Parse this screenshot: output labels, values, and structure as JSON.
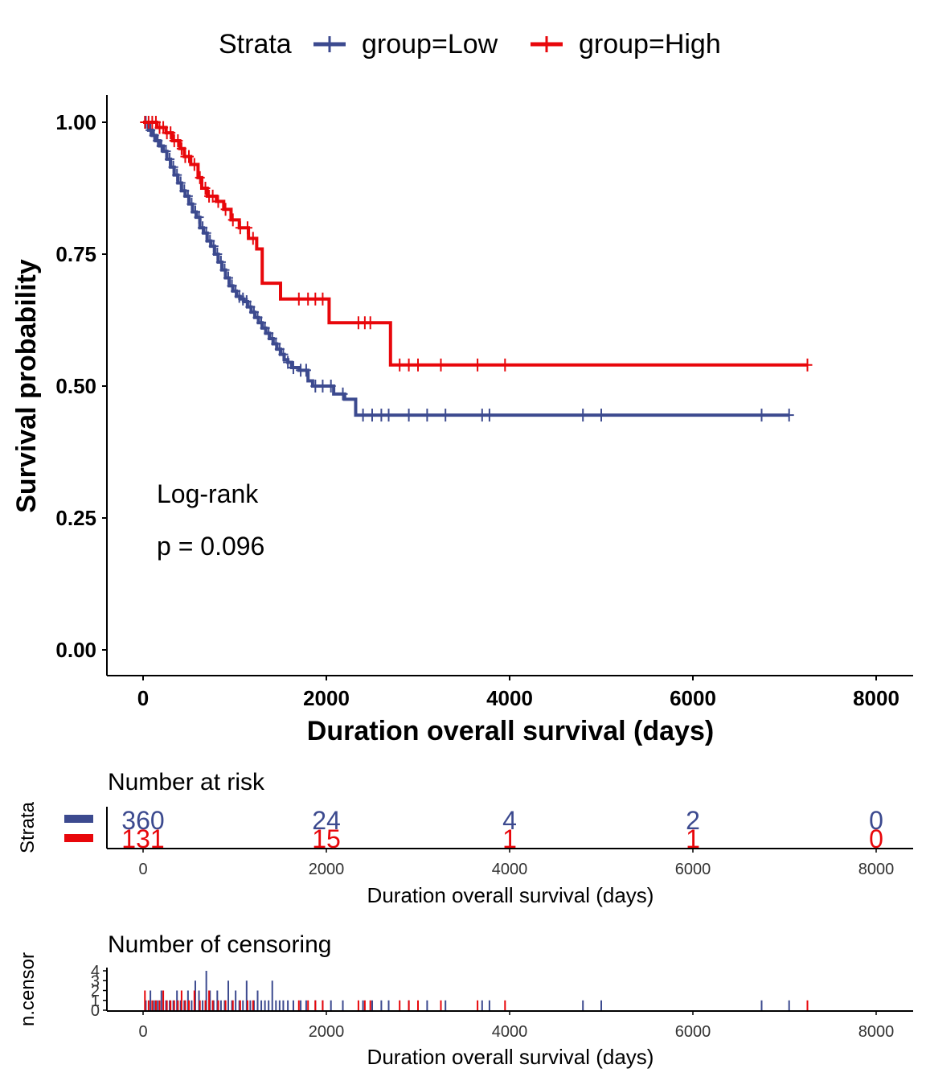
{
  "legend": {
    "title": "Strata",
    "items": [
      {
        "label": "group=Low",
        "color": "#3C4A8F"
      },
      {
        "label": "group=High",
        "color": "#E8070B"
      }
    ]
  },
  "annotation": {
    "line1": "Log-rank",
    "line2": "p = 0.096"
  },
  "chart_data": [
    {
      "type": "line",
      "title": "",
      "xlabel": "Duration overall survival (days)",
      "ylabel": "Survival probability",
      "xlim": [
        -400,
        8400
      ],
      "ylim": [
        -0.05,
        1.05
      ],
      "x_ticks": [
        0,
        2000,
        4000,
        6000,
        8000
      ],
      "y_ticks": [
        0.0,
        0.25,
        0.5,
        0.75,
        1.0
      ],
      "y_tick_labels": [
        "0.00",
        "0.25",
        "0.50",
        "0.75",
        "1.00"
      ],
      "grid": false,
      "legend_position": "top",
      "series": [
        {
          "name": "group=Low",
          "color": "#3C4A8F",
          "x": [
            0,
            60,
            100,
            140,
            180,
            220,
            260,
            300,
            340,
            380,
            420,
            460,
            500,
            540,
            580,
            620,
            660,
            700,
            740,
            780,
            820,
            860,
            900,
            940,
            980,
            1020,
            1060,
            1100,
            1140,
            1180,
            1220,
            1260,
            1300,
            1340,
            1380,
            1420,
            1460,
            1500,
            1540,
            1580,
            1620,
            1700,
            1800,
            1850,
            2000,
            2080,
            2200,
            2320,
            2400,
            7050
          ],
          "y": [
            1.0,
            0.985,
            0.975,
            0.965,
            0.955,
            0.945,
            0.93,
            0.915,
            0.9,
            0.885,
            0.87,
            0.86,
            0.845,
            0.83,
            0.82,
            0.8,
            0.79,
            0.775,
            0.765,
            0.75,
            0.735,
            0.72,
            0.705,
            0.69,
            0.68,
            0.67,
            0.665,
            0.66,
            0.65,
            0.64,
            0.63,
            0.62,
            0.61,
            0.6,
            0.59,
            0.58,
            0.57,
            0.56,
            0.55,
            0.545,
            0.535,
            0.53,
            0.51,
            0.5,
            0.5,
            0.485,
            0.475,
            0.445,
            0.445,
            0.445
          ],
          "censor_x": [
            30,
            80,
            120,
            160,
            200,
            250,
            290,
            330,
            370,
            410,
            450,
            490,
            530,
            570,
            610,
            650,
            690,
            730,
            770,
            810,
            850,
            890,
            930,
            970,
            1010,
            1050,
            1090,
            1130,
            1170,
            1210,
            1250,
            1290,
            1330,
            1370,
            1410,
            1450,
            1490,
            1530,
            1580,
            1640,
            1720,
            1780,
            1880,
            1960,
            2050,
            2180,
            2400,
            2500,
            2600,
            2680,
            2900,
            3100,
            3300,
            3700,
            3780,
            4800,
            5000,
            6750,
            7050
          ]
        },
        {
          "name": "group=High",
          "color": "#E8070B",
          "x": [
            0,
            150,
            250,
            320,
            400,
            450,
            520,
            600,
            640,
            700,
            800,
            880,
            960,
            1050,
            1150,
            1240,
            1300,
            1500,
            1900,
            2030,
            2250,
            2700,
            7250
          ],
          "y": [
            1.0,
            0.99,
            0.98,
            0.965,
            0.95,
            0.935,
            0.92,
            0.895,
            0.875,
            0.86,
            0.85,
            0.835,
            0.815,
            0.8,
            0.78,
            0.76,
            0.695,
            0.665,
            0.665,
            0.62,
            0.62,
            0.54,
            0.54
          ],
          "censor_x": [
            20,
            60,
            100,
            140,
            180,
            220,
            260,
            300,
            340,
            380,
            420,
            460,
            500,
            560,
            620,
            680,
            720,
            760,
            820,
            900,
            980,
            1060,
            1140,
            1200,
            1700,
            1800,
            1880,
            1960,
            2350,
            2420,
            2480,
            2800,
            2900,
            3000,
            3250,
            3650,
            3950,
            7250
          ]
        }
      ]
    },
    {
      "type": "table",
      "title": "Number at risk",
      "xlabel": "Duration overall survival (days)",
      "ylabel": "Strata",
      "xlim": [
        -400,
        8400
      ],
      "x_ticks": [
        0,
        2000,
        4000,
        6000,
        8000
      ],
      "series": [
        {
          "name": "group=Low",
          "color": "#3C4A8F",
          "x": [
            0,
            2000,
            4000,
            6000,
            8000
          ],
          "values": [
            "360",
            "24",
            "4",
            "2",
            "0"
          ]
        },
        {
          "name": "group=High",
          "color": "#E8070B",
          "x": [
            0,
            2000,
            4000,
            6000,
            8000
          ],
          "values": [
            "131",
            "15",
            "1",
            "1",
            "0"
          ]
        }
      ]
    },
    {
      "type": "bar",
      "title": "Number of censoring",
      "xlabel": "Duration overall survival (days)",
      "ylabel": "n.censor",
      "xlim": [
        -400,
        8400
      ],
      "ylim": [
        0,
        4
      ],
      "x_ticks": [
        0,
        2000,
        4000,
        6000,
        8000
      ],
      "y_ticks": [
        0,
        1,
        2,
        3,
        4
      ],
      "series": [
        {
          "name": "group=Low",
          "color": "#3C4A8F",
          "x": [
            30,
            80,
            120,
            160,
            200,
            250,
            290,
            330,
            370,
            410,
            450,
            490,
            530,
            570,
            610,
            650,
            690,
            730,
            770,
            810,
            850,
            890,
            930,
            970,
            1010,
            1050,
            1090,
            1130,
            1170,
            1210,
            1250,
            1290,
            1330,
            1370,
            1410,
            1450,
            1490,
            1530,
            1580,
            1640,
            1720,
            1780,
            1880,
            1960,
            2050,
            2180,
            2400,
            2500,
            2600,
            2680,
            2900,
            3100,
            3300,
            3700,
            3780,
            4800,
            5000,
            6750,
            7050
          ],
          "values": [
            1,
            2,
            1,
            1,
            2,
            1,
            1,
            1,
            2,
            1,
            1,
            2,
            1,
            3,
            2,
            1,
            4,
            2,
            1,
            2,
            1,
            1,
            3,
            1,
            2,
            1,
            1,
            3,
            1,
            1,
            2,
            1,
            1,
            1,
            3,
            1,
            1,
            1,
            1,
            1,
            1,
            1,
            1,
            1,
            1,
            1,
            1,
            1,
            1,
            1,
            1,
            1,
            1,
            1,
            1,
            1,
            1,
            1,
            1
          ]
        },
        {
          "name": "group=High",
          "color": "#E8070B",
          "x": [
            20,
            60,
            100,
            140,
            180,
            220,
            260,
            300,
            340,
            380,
            420,
            460,
            500,
            560,
            620,
            680,
            720,
            760,
            820,
            900,
            980,
            1060,
            1140,
            1200,
            1700,
            1800,
            1880,
            1960,
            2350,
            2420,
            2480,
            2800,
            2900,
            3000,
            3250,
            3650,
            3950,
            7250
          ],
          "values": [
            2,
            1,
            1,
            1,
            1,
            2,
            1,
            1,
            1,
            1,
            2,
            1,
            1,
            2,
            1,
            1,
            2,
            1,
            1,
            1,
            1,
            1,
            1,
            1,
            1,
            1,
            1,
            1,
            1,
            1,
            1,
            1,
            1,
            1,
            1,
            1,
            1,
            1
          ]
        }
      ]
    }
  ]
}
